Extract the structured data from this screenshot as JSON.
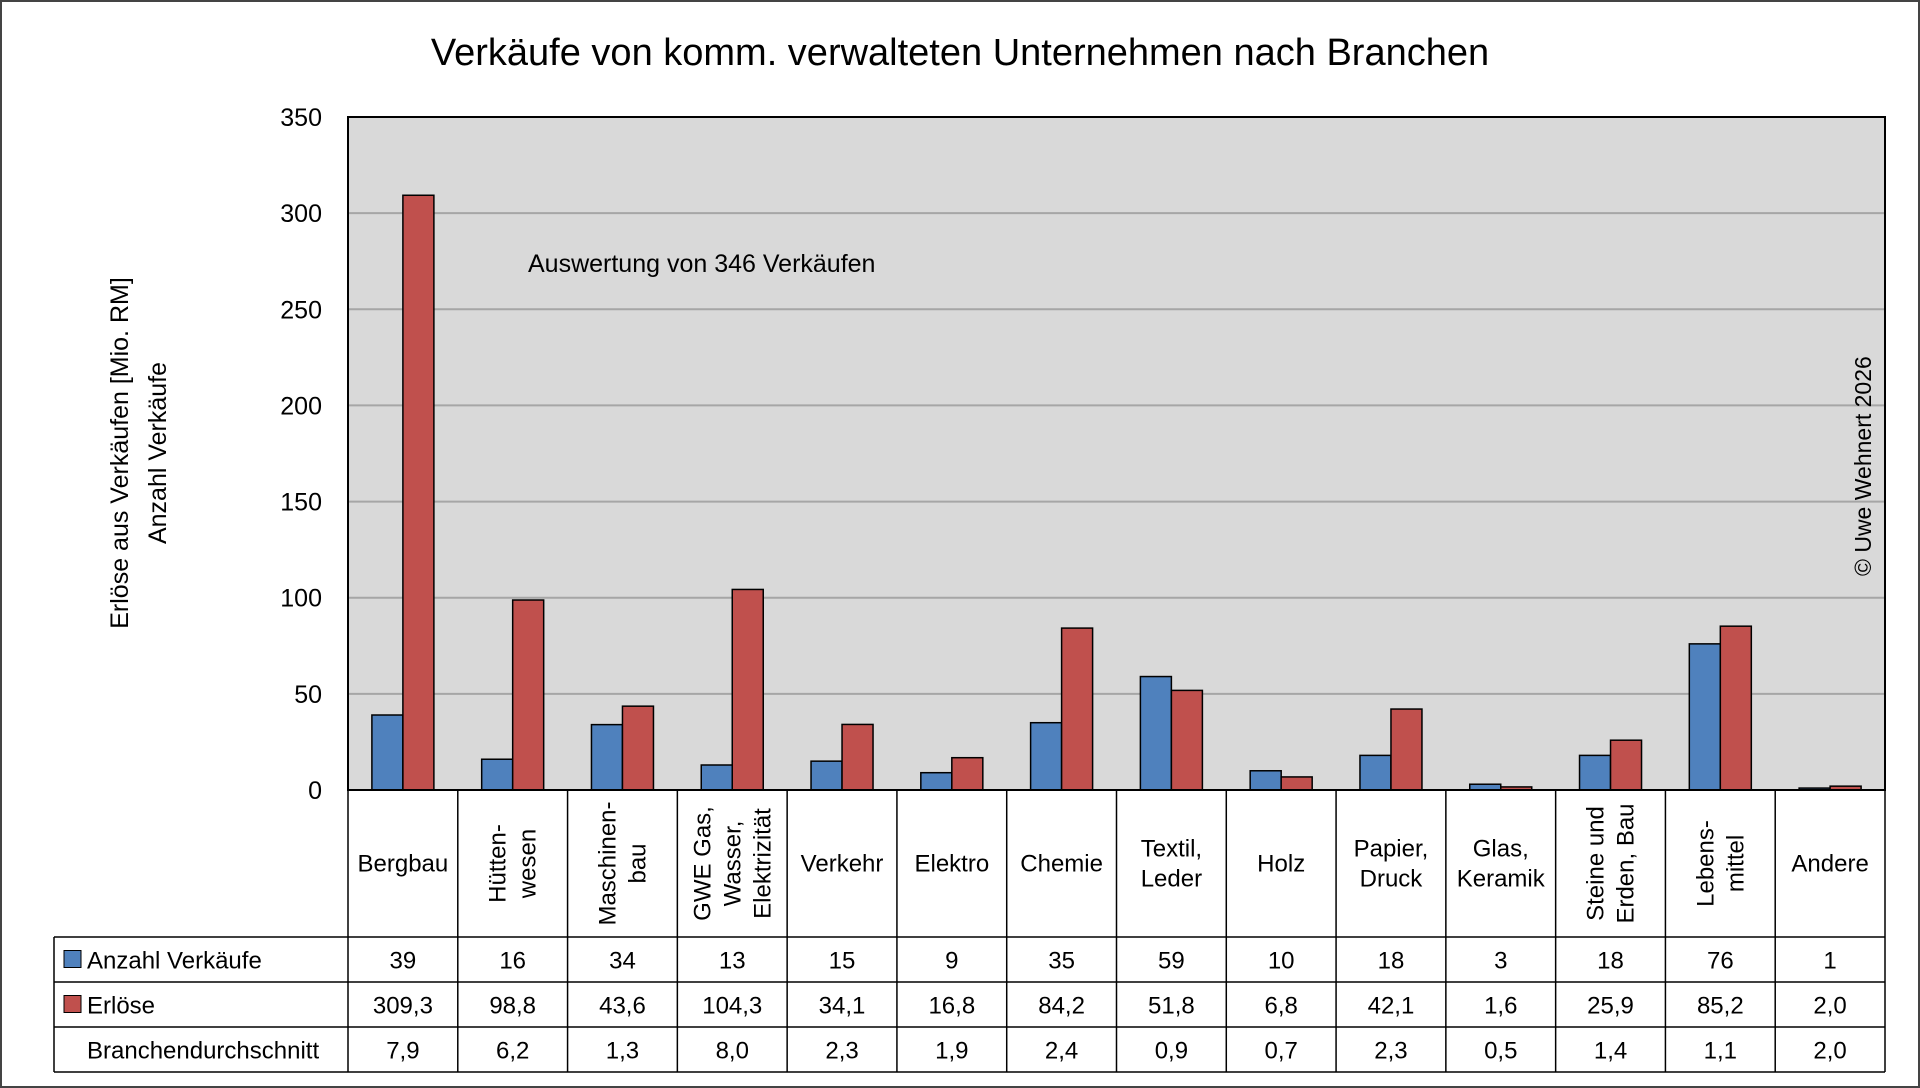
{
  "chart_data": {
    "type": "bar",
    "title": "Verkäufe von komm. verwalteten Unternehmen nach Branchen",
    "annotation": "Auswertung von 346 Verkäufen",
    "copyright": "© Uwe Wehnert 2026",
    "ylabel_lines": [
      "Erlöse aus Verkäufen [Mio. RM]",
      "Anzahl Verkäufe"
    ],
    "ylim": [
      0,
      350
    ],
    "yticks": [
      0,
      50,
      100,
      150,
      200,
      250,
      300,
      350
    ],
    "grid": true,
    "categories": [
      [
        "Bergbau"
      ],
      [
        "Hütten-",
        "wesen"
      ],
      [
        "Maschinen-",
        "bau"
      ],
      [
        "GWE Gas,",
        "Wasser,",
        "Elektrizität"
      ],
      [
        "Verkehr"
      ],
      [
        "Elektro"
      ],
      [
        "Chemie"
      ],
      [
        "Textil,",
        "Leder"
      ],
      [
        "Holz"
      ],
      [
        "Papier,",
        "Druck"
      ],
      [
        "Glas,",
        "Keramik"
      ],
      [
        "Steine und",
        "Erden, Bau"
      ],
      [
        "Lebens-",
        "mittel"
      ],
      [
        "Andere"
      ]
    ],
    "category_rotated": [
      false,
      true,
      true,
      true,
      false,
      false,
      false,
      false,
      false,
      false,
      false,
      true,
      true,
      false
    ],
    "series": [
      {
        "name": "Anzahl Verkäufe",
        "color": "#4F81BD",
        "values": [
          39,
          16,
          34,
          13,
          15,
          9,
          35,
          59,
          10,
          18,
          3,
          18,
          76,
          1
        ],
        "labels": [
          "39",
          "16",
          "34",
          "13",
          "15",
          "9",
          "35",
          "59",
          "10",
          "18",
          "3",
          "18",
          "76",
          "1"
        ]
      },
      {
        "name": "Erlöse",
        "color": "#C0504D",
        "values": [
          309.3,
          98.8,
          43.6,
          104.3,
          34.1,
          16.8,
          84.2,
          51.8,
          6.8,
          42.1,
          1.6,
          25.9,
          85.2,
          2.0
        ],
        "labels": [
          "309,3",
          "98,8",
          "43,6",
          "104,3",
          "34,1",
          "16,8",
          "84,2",
          "51,8",
          "6,8",
          "42,1",
          "1,6",
          "25,9",
          "85,2",
          "2,0"
        ]
      }
    ],
    "extra_row": {
      "name": "Branchendurchschnitt",
      "labels": [
        "7,9",
        "6,2",
        "1,3",
        "8,0",
        "2,3",
        "1,9",
        "2,4",
        "0,9",
        "0,7",
        "2,3",
        "0,5",
        "1,4",
        "1,1",
        "2,0"
      ]
    },
    "colors": {
      "plot_bg": "#D9D9D9",
      "grid": "#A6A6A6",
      "border": "#000000"
    }
  }
}
